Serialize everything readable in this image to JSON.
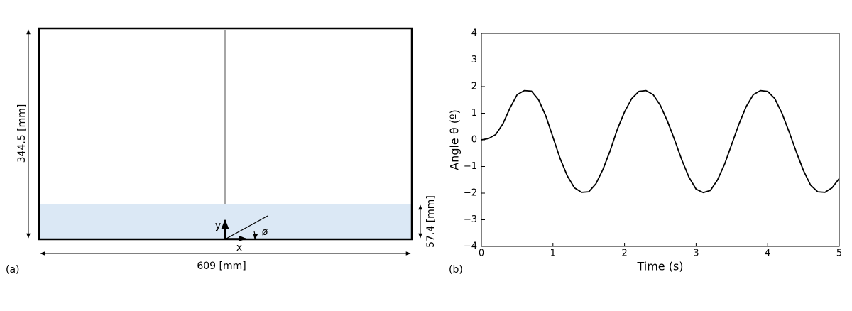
{
  "diagram": {
    "height": "344.5 [mm]",
    "width": "609 [mm]",
    "water_depth": "57.4 [mm]",
    "x_axis": "x",
    "y_axis": "y",
    "angle": "ø",
    "panel": "(a)"
  },
  "chart_data": {
    "type": "line",
    "panel": "(b)",
    "xlabel": "Time (s)",
    "ylabel": "Angle θ (º)",
    "x": [
      0,
      0.1,
      0.2,
      0.3,
      0.4,
      0.5,
      0.6,
      0.7,
      0.8,
      0.9,
      1.0,
      1.1,
      1.2,
      1.3,
      1.4,
      1.5,
      1.6,
      1.7,
      1.8,
      1.9,
      2.0,
      2.1,
      2.2,
      2.3,
      2.4,
      2.5,
      2.6,
      2.7,
      2.8,
      2.9,
      3.0,
      3.1,
      3.2,
      3.3,
      3.4,
      3.5,
      3.6,
      3.7,
      3.8,
      3.9,
      4.0,
      4.1,
      4.2,
      4.3,
      4.4,
      4.5,
      4.6,
      4.7,
      4.8,
      4.9,
      5.0
    ],
    "values": [
      0,
      0.05,
      0.2,
      0.6,
      1.2,
      1.7,
      1.85,
      1.83,
      1.5,
      0.9,
      0.1,
      -0.7,
      -1.35,
      -1.8,
      -1.97,
      -1.95,
      -1.65,
      -1.1,
      -0.4,
      0.4,
      1.05,
      1.55,
      1.82,
      1.85,
      1.7,
      1.3,
      0.7,
      0.0,
      -0.75,
      -1.4,
      -1.85,
      -1.98,
      -1.9,
      -1.5,
      -0.9,
      -0.15,
      0.6,
      1.25,
      1.7,
      1.85,
      1.82,
      1.55,
      1.0,
      0.3,
      -0.45,
      -1.15,
      -1.7,
      -1.95,
      -1.97,
      -1.8,
      -1.45
    ],
    "color": "#000000",
    "xlim": [
      0,
      5
    ],
    "xticks": [
      0,
      1,
      2,
      3,
      4,
      5
    ],
    "ylim": [
      -4,
      4
    ],
    "yticks": [
      {
        "value": -4,
        "label": "−4"
      },
      {
        "value": -3,
        "label": "−3"
      },
      {
        "value": -2,
        "label": "−2"
      },
      {
        "value": -1,
        "label": "−1"
      },
      0,
      1,
      2,
      3,
      4
    ],
    "grid": false
  }
}
